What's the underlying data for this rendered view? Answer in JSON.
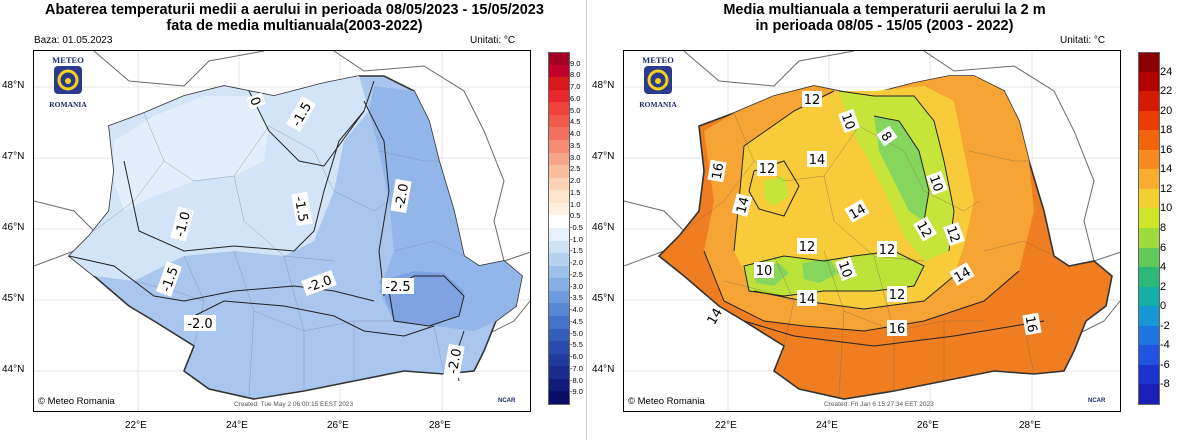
{
  "left_map": {
    "title_line1": "Abaterea temperaturii medii a aerului in perioada 08/05/2023 - 15/05/2023",
    "title_line2": "fata de media multianuala(2003-2022)",
    "base_date": "Baza: 01.05.2023",
    "units": "Unitati: °C",
    "logo_top": "METEO",
    "logo_bottom": "ROMANIA",
    "credit": "© Meteo Romania",
    "created": "Created: Tue May  2 06:00:15 EEST 2023",
    "ncar": "NCAR",
    "lat_labels": [
      "48°N",
      "47°N",
      "46°N",
      "45°N",
      "44°N"
    ],
    "lon_labels": [
      "22°E",
      "24°E",
      "26°E",
      "28°E"
    ],
    "contour_labels": [
      "0",
      "-1.5",
      "-1.0",
      "-1.5",
      "-2.0",
      "-1.5",
      "-2.0",
      "-2.0",
      "-2.5",
      "-2.0"
    ],
    "colorbar": {
      "labels": [
        "9.0",
        "8.0",
        "7.0",
        "6.0",
        "5.0",
        "4.5",
        "4.0",
        "3.5",
        "3.0",
        "2.5",
        "2.0",
        "1.5",
        "1.0",
        "0.5",
        "-0.5",
        "-1.0",
        "-1.5",
        "-2.0",
        "-2.5",
        "-3.0",
        "-3.5",
        "-4.0",
        "-4.5",
        "-5.0",
        "-5.5",
        "-6.0",
        "-7.0",
        "-8.0",
        "-9.0"
      ],
      "colors": [
        "#a50026",
        "#c0002a",
        "#d7191c",
        "#e8272f",
        "#f0423a",
        "#f2594a",
        "#f4705e",
        "#f68a72",
        "#f7a587",
        "#f9bf9d",
        "#fbd3b4",
        "#fde4cd",
        "#fef1e2",
        "#ffffff",
        "#e6f0fb",
        "#cfe2f5",
        "#b6d2ef",
        "#9cc0e9",
        "#84afe3",
        "#6c9cdc",
        "#5688d4",
        "#4373c9",
        "#345ebc",
        "#2a4bae",
        "#213a9e",
        "#1a2a8d",
        "#131b7a",
        "#0b0e66"
      ]
    },
    "colors": {
      "light": "#dbe9f8",
      "mid": "#b9d3f0",
      "deep": "#9dbfec",
      "deepest": "#86aee5"
    }
  },
  "right_map": {
    "title_line1": "Media multianuala a temperaturii aerului la 2 m",
    "title_line2": "in perioada 08/05 - 15/05 (2003 - 2022)",
    "units": "Unitati: °C",
    "logo_top": "METEO",
    "logo_bottom": "ROMANIA",
    "credit": "© Meteo Romania",
    "created": "Created: Fri Jan  6 15:27:34 EET 2023",
    "ncar": "NCAR",
    "lat_labels": [
      "48°N",
      "47°N",
      "46°N",
      "45°N",
      "44°N"
    ],
    "lon_labels": [
      "22°E",
      "24°E",
      "26°E",
      "28°E"
    ],
    "contour_labels": [
      "12",
      "10",
      "8",
      "16",
      "12",
      "14",
      "14",
      "14",
      "10",
      "12",
      "12",
      "10",
      "10",
      "12",
      "14",
      "14",
      "12",
      "16",
      "16",
      "14",
      "12"
    ],
    "colorbar": {
      "labels": [
        "24",
        "22",
        "20",
        "18",
        "16",
        "14",
        "12",
        "10",
        "8",
        "6",
        "4",
        "2",
        "0",
        "-2",
        "-4",
        "-6",
        "-8"
      ],
      "colors": [
        "#8b0000",
        "#b30000",
        "#d41a00",
        "#eb3d00",
        "#f2640c",
        "#f68a1e",
        "#f7ad30",
        "#f2d02d",
        "#cfe52a",
        "#9ddc3c",
        "#5fca59",
        "#2cb978",
        "#13b0a8",
        "#1996d6",
        "#1d74e0",
        "#2152e0",
        "#1d33d0",
        "#1a1fb8"
      ]
    },
    "colors": {
      "hot": "#ef7f1f",
      "warm": "#f6a534",
      "mild": "#f7c737",
      "cool": "#bfe33a",
      "cold": "#7fd35a"
    }
  }
}
